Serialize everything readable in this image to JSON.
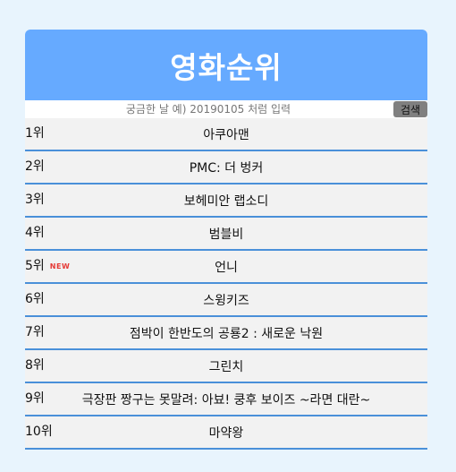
{
  "header": {
    "title": "영화순위"
  },
  "search": {
    "placeholder": "궁금한 날 예) 20190105 처럼 입력",
    "button_label": "검색"
  },
  "rankings": [
    {
      "rank": "1위",
      "title": "아쿠아맨",
      "badge": ""
    },
    {
      "rank": "2위",
      "title": "PMC: 더 벙커",
      "badge": ""
    },
    {
      "rank": "3위",
      "title": "보헤미안 랩소디",
      "badge": ""
    },
    {
      "rank": "4위",
      "title": "범블비",
      "badge": ""
    },
    {
      "rank": "5위",
      "title": "언니",
      "badge": "NEW"
    },
    {
      "rank": "6위",
      "title": "스윙키즈",
      "badge": ""
    },
    {
      "rank": "7위",
      "title": "점박이 한반도의 공룡2 : 새로운 낙원",
      "badge": ""
    },
    {
      "rank": "8위",
      "title": "그린치",
      "badge": ""
    },
    {
      "rank": "9위",
      "title": "극장판 짱구는 못말려: 아뵤! 쿵후 보이즈 ~라면 대란~",
      "badge": ""
    },
    {
      "rank": "10위",
      "title": "마약왕",
      "badge": ""
    }
  ],
  "colors": {
    "background": "#e8f4fd",
    "header": "#66aaff",
    "row_border": "#4a90d9",
    "new_badge": "#e53935",
    "search_button": "#808080"
  }
}
